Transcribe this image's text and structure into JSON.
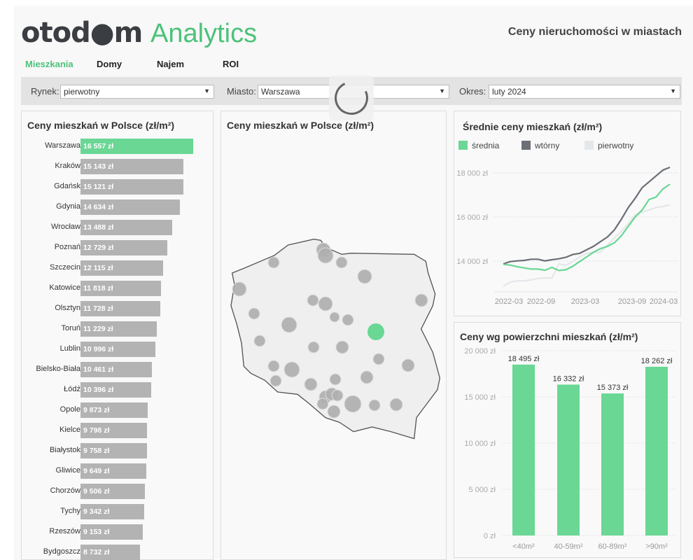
{
  "header": {
    "logo_part1": "otod",
    "logo_part2": "m",
    "logo_part3": "Analytics",
    "title": "Ceny nieruchomości w miastach"
  },
  "tabs": [
    {
      "label": "Mieszkania",
      "active": true
    },
    {
      "label": "Domy"
    },
    {
      "label": "Najem"
    },
    {
      "label": "ROI"
    }
  ],
  "filters": {
    "market_label": "Rynek:",
    "market_value": "pierwotny",
    "city_label": "Miasto:",
    "city_value": "Warszawa",
    "period_label": "Okres:",
    "period_value": "luty 2024"
  },
  "colors": {
    "accent": "#6ad795",
    "bar_gray": "#b3b3b3",
    "secondary": "#6b6f76",
    "primary_light": "#e4e7ea"
  },
  "city_panel": {
    "title": "Ceny mieszkań w Polsce (zł/m²)"
  },
  "map_panel": {
    "title": "Ceny mieszkań w Polsce (zł/m²)",
    "highlighted_city": "Warszawa"
  },
  "chart_data": [
    {
      "type": "bar",
      "orientation": "horizontal",
      "title": "Ceny mieszkań w Polsce (zł/m²)",
      "categories": [
        "Warszawa",
        "Kraków",
        "Gdańsk",
        "Gdynia",
        "Wrocław",
        "Poznań",
        "Szczecin",
        "Katowice",
        "Olsztyn",
        "Toruń",
        "Lublin",
        "Bielsko-Biała",
        "Łódź",
        "Opole",
        "Kielce",
        "Białystok",
        "Gliwice",
        "Chorzów",
        "Tychy",
        "Rzeszów",
        "Bydgoszcz"
      ],
      "values": [
        16557,
        15143,
        15121,
        14634,
        13488,
        12729,
        12115,
        11818,
        11728,
        11229,
        10996,
        10461,
        10396,
        9873,
        9798,
        9758,
        9649,
        9506,
        9342,
        9153,
        8732
      ],
      "labels": [
        "16 557 zł",
        "15 143 zł",
        "15 121 zł",
        "14 634 zł",
        "13 488 zł",
        "12 729 zł",
        "12 115 zł",
        "11 818 zł",
        "11 728 zł",
        "11 229 zł",
        "10 996 zł",
        "10 461 zł",
        "10 396 zł",
        "9 873 zł",
        "9 798 zł",
        "9 758 zł",
        "9 649 zł",
        "9 506 zł",
        "9 342 zł",
        "9 153 zł",
        "8 732 zł"
      ],
      "highlight": "Warszawa"
    },
    {
      "type": "line",
      "title": "Średnie ceny mieszkań (zł/m²)",
      "x_start": "2022-03",
      "x_end": "2024-03",
      "xticks": [
        "2022-03",
        "2022-09",
        "2023-03",
        "2023-09",
        "2024-03"
      ],
      "yticks": [
        14000,
        16000,
        18000
      ],
      "ytick_labels": [
        "14 000 zł",
        "16 000 zł",
        "18 000 zł"
      ],
      "ylim": [
        12600,
        18700
      ],
      "grid": true,
      "legend": "top",
      "series": [
        {
          "name": "średnia",
          "color": "#6ad795",
          "values": [
            13851,
            13819,
            13745,
            13691,
            13638,
            13638,
            13585,
            13713,
            13574,
            13606,
            13766,
            13979,
            14191,
            14404,
            14564,
            14670,
            14830,
            15149,
            15574,
            16000,
            16319,
            16798,
            16904,
            17277,
            17489
          ]
        },
        {
          "name": "wtórny",
          "color": "#6b6f76",
          "values": [
            13872,
            13979,
            14011,
            14032,
            14085,
            14085,
            14011,
            14064,
            14106,
            14170,
            14298,
            14351,
            14511,
            14670,
            14883,
            15096,
            15415,
            15894,
            16426,
            16851,
            17330,
            17596,
            17862,
            18128,
            18255
          ]
        },
        {
          "name": "pierwotny",
          "color": "#e4e7ea",
          "values": [
            12862,
            13043,
            13106,
            13106,
            13149,
            13213,
            13234,
            13234,
            13872,
            13819,
            13979,
            14191,
            14351,
            14404,
            14404,
            14723,
            15043,
            15362,
            15681,
            16106,
            16213,
            16319,
            16426,
            16479,
            16553
          ]
        }
      ]
    },
    {
      "type": "bar",
      "title": "Ceny wg powierzchni mieszkań (zł/m²)",
      "categories": [
        "<40m²",
        "40-59m²",
        "60-89m²",
        ">90m²"
      ],
      "values": [
        18495,
        16332,
        15373,
        18262
      ],
      "labels": [
        "18 495 zł",
        "16 332 zł",
        "15 373 zł",
        "18 262 zł"
      ],
      "yticks": [
        0,
        5000,
        10000,
        15000,
        20000
      ],
      "ytick_labels": [
        "0 zł",
        "5 000 zł",
        "10 000 zł",
        "15 000 zł",
        "20 000 zł"
      ],
      "ylim": [
        0,
        20000
      ],
      "grid": true
    }
  ]
}
